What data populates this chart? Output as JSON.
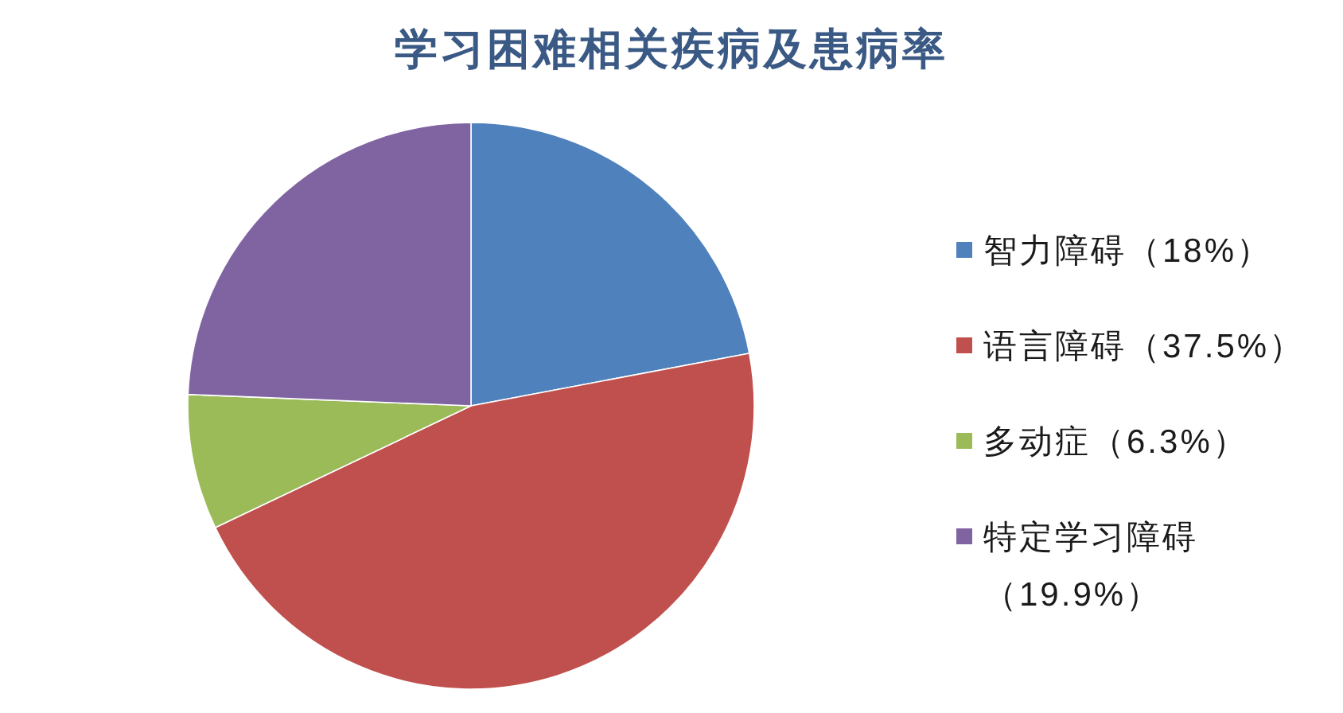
{
  "chart_data": {
    "type": "pie",
    "title": "学习困难相关疾病及患病率",
    "categories": [
      "智力障碍（18%）",
      "语言障碍（37.5%）",
      "多动症（6.3%）",
      "特定学习障碍（19.9%）"
    ],
    "values": [
      18,
      37.5,
      6.3,
      19.9
    ],
    "colors": [
      "#4f81bd",
      "#c0504d",
      "#9bbb59",
      "#8064a2"
    ],
    "legend": "right"
  }
}
